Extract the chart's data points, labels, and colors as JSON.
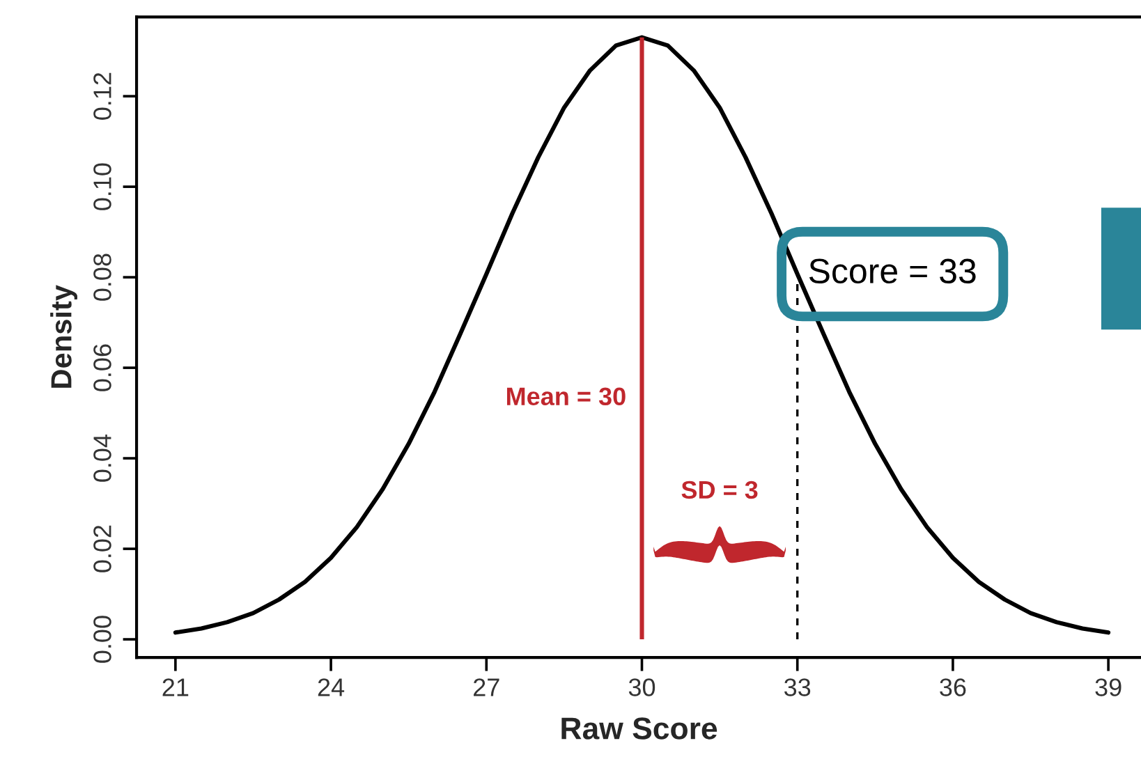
{
  "chart_data": {
    "type": "line",
    "xlabel": "Raw Score",
    "ylabel": "Density",
    "x": [
      21,
      21.5,
      22,
      22.5,
      23,
      23.5,
      24,
      24.5,
      25,
      25.5,
      26,
      26.5,
      27,
      27.5,
      28,
      28.5,
      29,
      29.5,
      30,
      30.5,
      31,
      31.5,
      32,
      32.5,
      33,
      33.5,
      34,
      34.5,
      35,
      35.5,
      36,
      36.5,
      37,
      37.5,
      38,
      38.5,
      39
    ],
    "series": [
      {
        "color": "#000000",
        "values": [
          0.0015,
          0.0024,
          0.0038,
          0.0058,
          0.0088,
          0.0127,
          0.018,
          0.0248,
          0.0332,
          0.0432,
          0.0547,
          0.0676,
          0.0807,
          0.0941,
          0.1065,
          0.1175,
          0.1257,
          0.1312,
          0.133,
          0.1312,
          0.1257,
          0.1175,
          0.1065,
          0.0941,
          0.0807,
          0.0676,
          0.0547,
          0.0432,
          0.0332,
          0.0248,
          0.018,
          0.0127,
          0.0088,
          0.0058,
          0.0038,
          0.0024,
          0.0015
        ]
      }
    ],
    "xlim": [
      20.25,
      39.63
    ],
    "ylim": [
      -0.004,
      0.1375
    ],
    "xticks": [
      21,
      24,
      27,
      30,
      33,
      36,
      39
    ],
    "yticks": [
      {
        "value": 0,
        "label": "0.00"
      },
      {
        "value": 0.02,
        "label": "0.02"
      },
      {
        "value": 0.04,
        "label": "0.04"
      },
      {
        "value": 0.06,
        "label": "0.06"
      },
      {
        "value": 0.08,
        "label": "0.08"
      },
      {
        "value": 0.1,
        "label": "0.10"
      },
      {
        "value": 0.12,
        "label": "0.12"
      }
    ],
    "ref_lines": [
      {
        "axis": "x",
        "value": 30,
        "label": "Mean = 30",
        "color": "#c0272d",
        "line_style": "solid"
      },
      {
        "axis": "x",
        "value": 33,
        "label": "Score = 33",
        "color": "#000000",
        "line_style": "dashed"
      }
    ],
    "annotations": [
      "SD = 3"
    ],
    "grid": false,
    "legend": false,
    "marker": "none",
    "line_style": "solid"
  }
}
